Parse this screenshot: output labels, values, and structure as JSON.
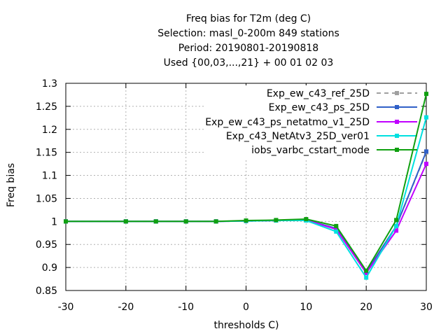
{
  "title_lines": [
    "Freq bias  for T2m (deg C)",
    "Selection: masl_0-200m    849 stations",
    "Period: 20190801-20190818",
    "Used {00,03,...,21} + 00 01 02 03"
  ],
  "chart_data": {
    "type": "line",
    "xlabel": "thresholds C)",
    "ylabel": "Freq bias",
    "xlim": [
      -30,
      30
    ],
    "ylim": [
      0.85,
      1.3
    ],
    "xticks": [
      "-30",
      "-20",
      "-10",
      "0",
      "10",
      "20",
      "30"
    ],
    "yticks": [
      "0.85",
      "0.9",
      "0.95",
      "1",
      "1.05",
      "1.1",
      "1.15",
      "1.2",
      "1.25",
      "1.3"
    ],
    "grid": true,
    "legend_position": "top-right",
    "x": [
      -30,
      -20,
      -15,
      -10,
      -5,
      0,
      5,
      10,
      15,
      20,
      25,
      30
    ],
    "series": [
      {
        "name": "Exp_ew_c43_ref_25D",
        "color": "#a0a0a0",
        "dash": "dashed",
        "values": [
          1.0,
          1.0,
          1.0,
          1.0,
          1.0,
          1.001,
          1.002,
          1.003,
          0.985,
          0.89,
          0.99,
          1.15
        ]
      },
      {
        "name": "Exp_ew_c43_ps_25D",
        "color": "#3060c8",
        "dash": "solid",
        "values": [
          1.0,
          1.0,
          1.0,
          1.0,
          1.0,
          1.001,
          1.002,
          1.003,
          0.985,
          0.89,
          0.99,
          1.152
        ]
      },
      {
        "name": "Exp_ew_c43_ps_netatmo_v1_25D",
        "color": "#c000ff",
        "dash": "solid",
        "values": [
          1.0,
          1.0,
          1.0,
          1.0,
          1.0,
          1.001,
          1.002,
          1.003,
          0.983,
          0.888,
          0.98,
          1.125
        ]
      },
      {
        "name": "Exp_c43_NetAtv3_25D_ver01",
        "color": "#00e0e0",
        "dash": "solid",
        "values": [
          1.0,
          1.0,
          1.0,
          1.0,
          1.0,
          1.001,
          1.002,
          1.002,
          0.978,
          0.878,
          0.99,
          1.226
        ]
      },
      {
        "name": "iobs_varbc_cstart_mode",
        "color": "#10a010",
        "dash": "solid",
        "values": [
          1.0,
          1.0,
          1.0,
          1.0,
          1.0,
          1.002,
          1.003,
          1.005,
          0.99,
          0.893,
          1.003,
          1.277
        ]
      }
    ]
  }
}
